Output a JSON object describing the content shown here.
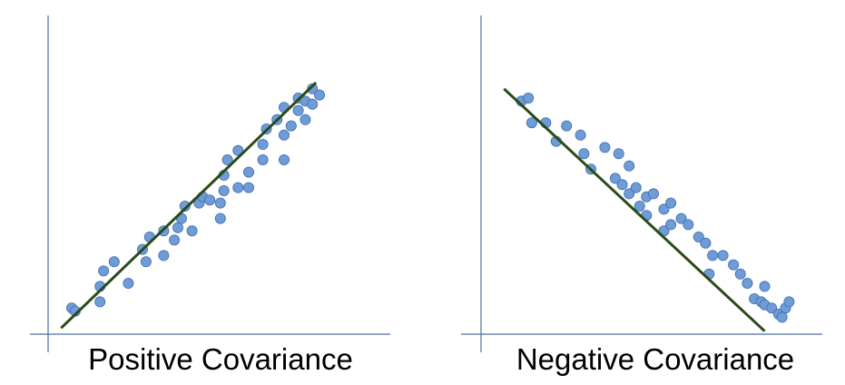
{
  "colors": {
    "axis": "#4a72a8",
    "point_fill": "#6f9bd6",
    "point_stroke": "#3f6fb0",
    "trend_line": "#2b4a1a",
    "caption": "#000000"
  },
  "chart_data": [
    {
      "type": "scatter",
      "title": "Positive Covariance",
      "xlabel": "",
      "ylabel": "",
      "axis_ticks": false,
      "grid": false,
      "xlim": [
        0,
        10
      ],
      "ylim": [
        0,
        10
      ],
      "trend_line": {
        "x": [
          0.7,
          7.9
        ],
        "y": [
          0.55,
          8.5
        ]
      },
      "points": [
        [
          1.0,
          1.2
        ],
        [
          1.1,
          1.1
        ],
        [
          1.8,
          1.4
        ],
        [
          1.8,
          1.9
        ],
        [
          1.9,
          2.4
        ],
        [
          2.2,
          2.7
        ],
        [
          2.6,
          2.0
        ],
        [
          3.0,
          3.1
        ],
        [
          3.1,
          2.7
        ],
        [
          3.2,
          3.5
        ],
        [
          3.6,
          2.9
        ],
        [
          3.6,
          3.7
        ],
        [
          3.9,
          3.4
        ],
        [
          4.0,
          3.8
        ],
        [
          4.1,
          4.1
        ],
        [
          4.2,
          4.5
        ],
        [
          4.4,
          3.7
        ],
        [
          4.6,
          4.6
        ],
        [
          4.7,
          4.8
        ],
        [
          4.9,
          4.7
        ],
        [
          5.2,
          4.1
        ],
        [
          5.2,
          4.6
        ],
        [
          5.3,
          5.0
        ],
        [
          5.3,
          5.5
        ],
        [
          5.4,
          6.0
        ],
        [
          5.7,
          5.1
        ],
        [
          5.7,
          6.3
        ],
        [
          6.0,
          5.1
        ],
        [
          6.0,
          5.6
        ],
        [
          6.4,
          6.0
        ],
        [
          6.4,
          6.5
        ],
        [
          6.5,
          7.0
        ],
        [
          6.8,
          7.3
        ],
        [
          7.0,
          6.0
        ],
        [
          7.0,
          6.8
        ],
        [
          7.0,
          7.7
        ],
        [
          7.2,
          7.1
        ],
        [
          7.4,
          8.0
        ],
        [
          7.4,
          7.6
        ],
        [
          7.6,
          7.9
        ],
        [
          7.6,
          7.3
        ],
        [
          7.8,
          7.8
        ],
        [
          7.8,
          8.3
        ],
        [
          8.0,
          8.1
        ]
      ]
    },
    {
      "type": "scatter",
      "title": "Negative Covariance",
      "xlabel": "",
      "ylabel": "",
      "axis_ticks": false,
      "grid": false,
      "xlim": [
        0,
        10
      ],
      "ylim": [
        0,
        10
      ],
      "trend_line": {
        "x": [
          1.0,
          8.5
        ],
        "y": [
          8.3,
          0.45
        ]
      },
      "points": [
        [
          1.5,
          7.9
        ],
        [
          1.7,
          8.0
        ],
        [
          1.8,
          7.2
        ],
        [
          2.2,
          7.2
        ],
        [
          2.5,
          6.6
        ],
        [
          2.8,
          7.1
        ],
        [
          3.2,
          6.8
        ],
        [
          3.3,
          6.2
        ],
        [
          3.5,
          5.7
        ],
        [
          3.9,
          6.4
        ],
        [
          4.2,
          5.4
        ],
        [
          4.3,
          6.2
        ],
        [
          4.4,
          5.2
        ],
        [
          4.6,
          5.8
        ],
        [
          4.6,
          4.9
        ],
        [
          4.8,
          5.1
        ],
        [
          4.9,
          4.5
        ],
        [
          5.1,
          4.8
        ],
        [
          5.1,
          4.2
        ],
        [
          5.3,
          4.9
        ],
        [
          5.6,
          4.4
        ],
        [
          5.6,
          3.7
        ],
        [
          5.8,
          4.6
        ],
        [
          5.8,
          3.9
        ],
        [
          6.1,
          4.1
        ],
        [
          6.3,
          3.9
        ],
        [
          6.6,
          3.5
        ],
        [
          6.8,
          3.3
        ],
        [
          6.9,
          2.3
        ],
        [
          7.0,
          2.9
        ],
        [
          7.3,
          2.9
        ],
        [
          7.6,
          2.6
        ],
        [
          7.8,
          2.3
        ],
        [
          8.0,
          2.0
        ],
        [
          8.2,
          1.5
        ],
        [
          8.4,
          1.4
        ],
        [
          8.5,
          1.9
        ],
        [
          8.5,
          1.3
        ],
        [
          8.7,
          1.2
        ],
        [
          8.9,
          1.0
        ],
        [
          9.1,
          1.2
        ],
        [
          9.2,
          1.4
        ],
        [
          9.0,
          0.9
        ]
      ]
    }
  ]
}
